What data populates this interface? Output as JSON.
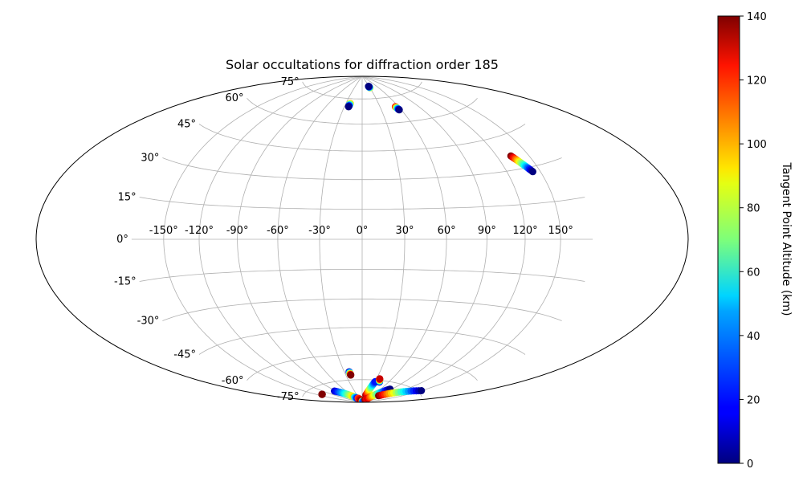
{
  "chart_data": {
    "type": "scatter",
    "title": "Solar occultations for diffraction order 185",
    "projection": "hammer",
    "grid": true,
    "lon_tick_labels": [
      "-150°",
      "-120°",
      "-90°",
      "-60°",
      "-30°",
      "0°",
      "30°",
      "60°",
      "90°",
      "120°",
      "150°"
    ],
    "lon_ticks": [
      -150,
      -120,
      -90,
      -60,
      -30,
      0,
      30,
      60,
      90,
      120,
      150
    ],
    "lat_tick_labels": [
      "-75°",
      "-60°",
      "-45°",
      "-30°",
      "-15°",
      "0°",
      "15°",
      "30°",
      "45°",
      "60°",
      "75°"
    ],
    "lat_ticks": [
      -75,
      -60,
      -45,
      -30,
      -15,
      0,
      15,
      30,
      45,
      60,
      75
    ],
    "xlim": [
      -180,
      180
    ],
    "ylim": [
      -90,
      90
    ],
    "colorbar": {
      "label": "Tangent Point Altitude (km)",
      "range": [
        0,
        140
      ],
      "tick_labels": [
        "0",
        "20",
        "40",
        "60",
        "80",
        "100",
        "120",
        "140"
      ],
      "ticks": [
        0,
        20,
        40,
        60,
        80,
        100,
        120,
        140
      ],
      "colormap": "jet"
    },
    "tracks": [
      {
        "lon_start": 30,
        "lat_start": 82,
        "lon_end": 28,
        "lat_end": 83,
        "alt_start": 90,
        "alt_end": 0
      },
      {
        "lon_start": -22,
        "lat_start": 72,
        "lon_end": -23,
        "lat_end": 70,
        "alt_start": 100,
        "alt_end": 0
      },
      {
        "lon_start": 55,
        "lat_start": 69,
        "lon_end": 57,
        "lat_end": 67,
        "alt_start": 130,
        "alt_end": 0
      },
      {
        "lon_start": 133,
        "lat_start": 36,
        "lon_end": 143,
        "lat_end": 28,
        "alt_start": 140,
        "alt_end": 0
      },
      {
        "lon_start": -22,
        "lat_start": -70,
        "lon_end": -21,
        "lat_end": -72,
        "alt_start": 0,
        "alt_end": 140
      },
      {
        "lon_start": -94,
        "lat_start": -80,
        "lon_end": -58,
        "lat_end": -86,
        "alt_start": 10,
        "alt_end": 100
      },
      {
        "lon_start": -58,
        "lat_start": -86,
        "lon_end": -48,
        "lat_end": -87,
        "alt_start": 60,
        "alt_end": 20
      },
      {
        "lon_start": -40,
        "lat_start": -87,
        "lon_end": -20,
        "lat_end": -89,
        "alt_start": 110,
        "alt_end": 140
      },
      {
        "lon_start": -10,
        "lat_start": -89,
        "lon_end": 40,
        "lat_end": -89.5,
        "alt_start": 140,
        "alt_end": 30
      },
      {
        "lon_start": 22,
        "lat_start": -85,
        "lon_end": 30,
        "lat_end": -76,
        "alt_start": 140,
        "alt_end": 20
      },
      {
        "lon_start": 40,
        "lat_start": -76,
        "lon_end": 36,
        "lat_end": -74,
        "alt_start": 0,
        "alt_end": 130
      },
      {
        "lon_start": 42,
        "lat_start": -88,
        "lon_end": 56,
        "lat_end": -87,
        "alt_start": 140,
        "alt_end": 120
      },
      {
        "lon_start": 56,
        "lat_start": -87,
        "lon_end": 85,
        "lat_end": -79,
        "alt_start": 130,
        "alt_end": 0
      },
      {
        "lon_start": 90,
        "lat_start": -84,
        "lon_end": 150,
        "lat_end": -74,
        "alt_start": 140,
        "alt_end": 0
      },
      {
        "lon_start": -140,
        "lat_start": -79,
        "lon_end": -140,
        "lat_end": -79,
        "alt_start": 140,
        "alt_end": 140
      }
    ]
  }
}
